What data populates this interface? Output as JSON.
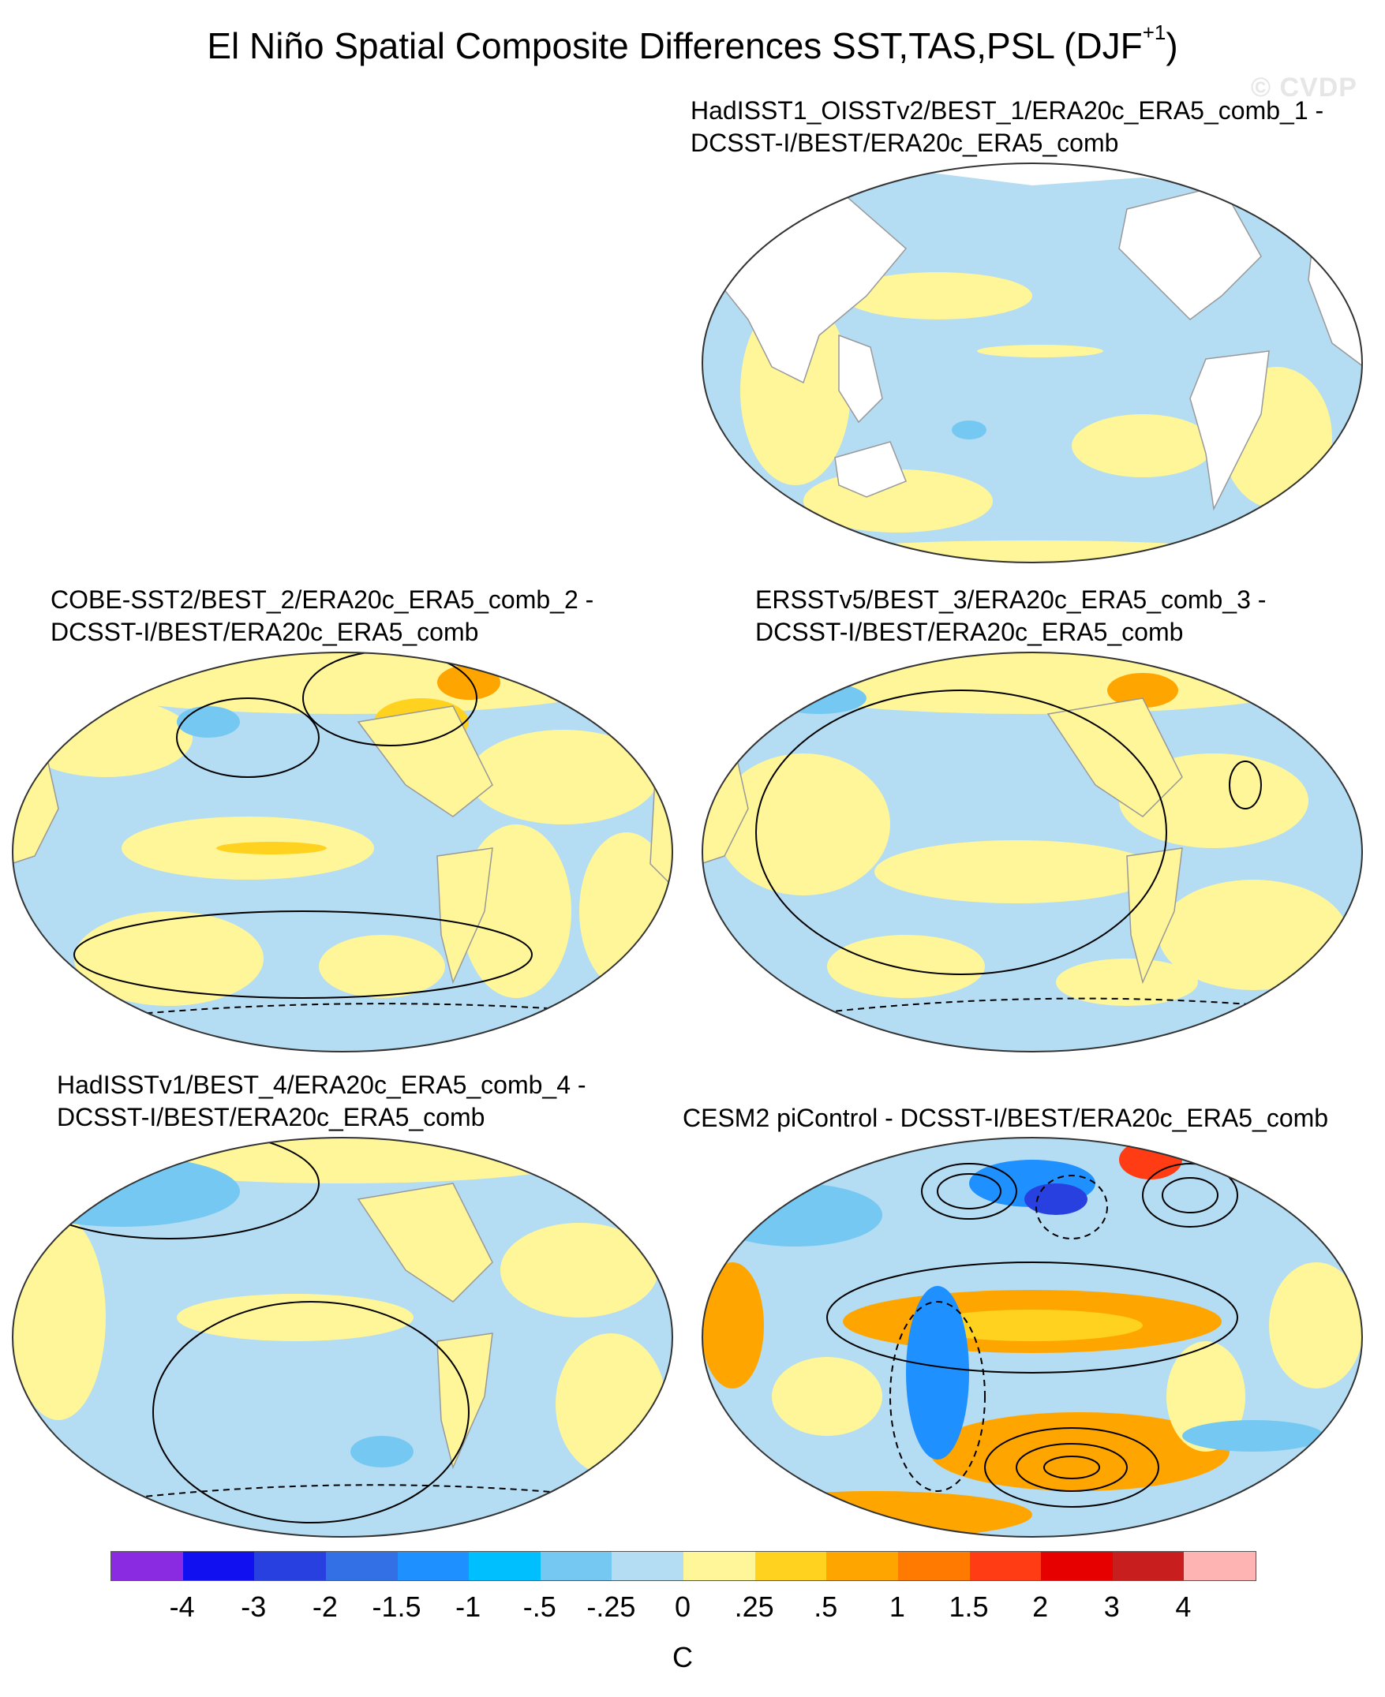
{
  "title_main": "El Niño Spatial Composite Differences SST,TAS,PSL (DJF",
  "title_sup": "+1",
  "title_end": ")",
  "watermark": "© CVDP",
  "panels": [
    {
      "line1": "HadISST1_OISSTv2/BEST_1/ERA20c_ERA5_comb_1 -",
      "line2": "DCSST-I/BEST/ERA20c_ERA5_comb"
    },
    {
      "line1": "COBE-SST2/BEST_2/ERA20c_ERA5_comb_2 -",
      "line2": "DCSST-I/BEST/ERA20c_ERA5_comb"
    },
    {
      "line1": "ERSSTv5/BEST_3/ERA20c_ERA5_comb_3 -",
      "line2": "DCSST-I/BEST/ERA20c_ERA5_comb"
    },
    {
      "line1": "HadISSTv1/BEST_4/ERA20c_ERA5_comb_4 -",
      "line2": "DCSST-I/BEST/ERA20c_ERA5_comb"
    },
    {
      "line1": "CESM2 piControl - DCSST-I/BEST/ERA20c_ERA5_comb",
      "line2": ""
    }
  ],
  "colorbar": {
    "colors": [
      "#8a2be2",
      "#1010f0",
      "#2840e0",
      "#3370e6",
      "#1e90ff",
      "#00bfff",
      "#74c8f2",
      "#b4dcf2",
      "#fff699",
      "#ffd21f",
      "#ffa500",
      "#ff7a00",
      "#ff3c14",
      "#e60000",
      "#c81e1e",
      "#ffb4b4"
    ],
    "labels": [
      "-4",
      "-3",
      "-2",
      "-1.5",
      "-1",
      "-.5",
      "-.25",
      "0",
      ".25",
      ".5",
      "1",
      "1.5",
      "2",
      "3",
      "4"
    ],
    "units": "C"
  }
}
